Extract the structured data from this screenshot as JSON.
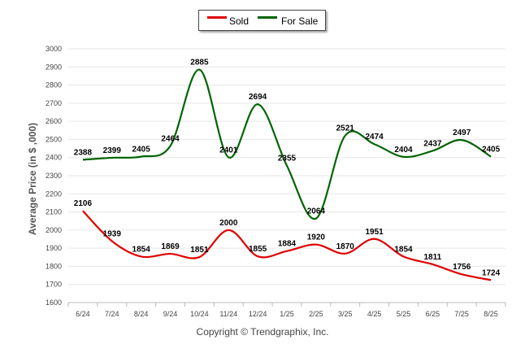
{
  "chart_data": {
    "type": "line",
    "categories": [
      "6/24",
      "7/24",
      "8/24",
      "9/24",
      "10/24",
      "11/24",
      "12/24",
      "1/25",
      "2/25",
      "3/25",
      "4/25",
      "5/25",
      "6/25",
      "7/25",
      "8/25"
    ],
    "series": [
      {
        "name": "Sold",
        "color": "#e00000",
        "values": [
          2106,
          1939,
          1854,
          1869,
          1851,
          2000,
          1855,
          1884,
          1920,
          1870,
          1951,
          1854,
          1811,
          1756,
          1724
        ]
      },
      {
        "name": "For Sale",
        "color": "#006400",
        "values": [
          2388,
          2399,
          2405,
          2464,
          2885,
          2401,
          2694,
          2355,
          2064,
          2521,
          2474,
          2404,
          2437,
          2497,
          2405
        ]
      }
    ],
    "ylabel": "Average Price (in $ ,000)",
    "ylim": [
      1600,
      3000
    ],
    "yticks": [
      "1600",
      "1700",
      "1800",
      "1900",
      "2000",
      "2100",
      "2200",
      "2300",
      "2400",
      "2500",
      "2600",
      "2700",
      "2800",
      "2900",
      "3000"
    ],
    "grid": true,
    "legend_position": "top-center",
    "credit": "Copyright © Trendgraphix, Inc."
  }
}
